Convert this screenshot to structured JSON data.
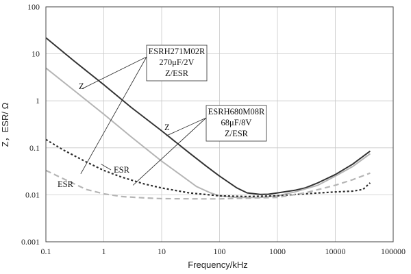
{
  "chart_data": {
    "type": "line",
    "xlabel": "Frequency/kHz",
    "ylabel": "Z，ESR/ Ω",
    "xscale": "log",
    "yscale": "log",
    "xlim": [
      0.1,
      100000
    ],
    "ylim": [
      0.001,
      100
    ],
    "grid": true,
    "x_ticks": [
      "0.1",
      "1",
      "10",
      "100",
      "1000",
      "10000",
      "100000"
    ],
    "y_ticks": [
      "0.001",
      "0.01",
      "0.1",
      "1",
      "10",
      "100"
    ],
    "series": [
      {
        "group": "ESRH271M02R",
        "measure": "Z",
        "color": "#333333",
        "style": "solid",
        "points": [
          [
            0.1,
            22
          ],
          [
            0.3,
            7.2
          ],
          [
            1,
            2.2
          ],
          [
            3,
            0.72
          ],
          [
            10,
            0.23
          ],
          [
            30,
            0.078
          ],
          [
            60,
            0.04
          ],
          [
            100,
            0.025
          ],
          [
            200,
            0.014
          ],
          [
            300,
            0.011
          ],
          [
            500,
            0.0102
          ],
          [
            700,
            0.0103
          ],
          [
            1000,
            0.011
          ],
          [
            2000,
            0.0125
          ],
          [
            3000,
            0.014
          ],
          [
            5000,
            0.018
          ],
          [
            10000,
            0.027
          ],
          [
            20000,
            0.045
          ],
          [
            40000,
            0.085
          ]
        ]
      },
      {
        "group": "ESRH680M08R",
        "measure": "Z",
        "color": "#b5b5b5",
        "style": "solid",
        "points": [
          [
            0.1,
            5
          ],
          [
            0.3,
            1.7
          ],
          [
            1,
            0.52
          ],
          [
            3,
            0.17
          ],
          [
            10,
            0.052
          ],
          [
            20,
            0.028
          ],
          [
            40,
            0.015
          ],
          [
            70,
            0.011
          ],
          [
            100,
            0.0095
          ],
          [
            200,
            0.0088
          ],
          [
            500,
            0.0088
          ],
          [
            1000,
            0.0095
          ],
          [
            2000,
            0.0115
          ],
          [
            5000,
            0.016
          ],
          [
            10000,
            0.025
          ],
          [
            20000,
            0.04
          ],
          [
            40000,
            0.075
          ]
        ]
      },
      {
        "group": "ESRH271M02R",
        "measure": "ESR",
        "color": "#2b2b2b",
        "style": "dotted",
        "points": [
          [
            0.1,
            0.15
          ],
          [
            0.2,
            0.09
          ],
          [
            0.5,
            0.05
          ],
          [
            1,
            0.033
          ],
          [
            2,
            0.024
          ],
          [
            5,
            0.017
          ],
          [
            10,
            0.014
          ],
          [
            30,
            0.011
          ],
          [
            100,
            0.0095
          ],
          [
            300,
            0.0092
          ],
          [
            1000,
            0.0095
          ],
          [
            3000,
            0.0105
          ],
          [
            10000,
            0.0115
          ],
          [
            20000,
            0.012
          ],
          [
            30000,
            0.013
          ],
          [
            40000,
            0.018
          ]
        ]
      },
      {
        "group": "ESRH680M08R",
        "measure": "ESR",
        "color": "#b5b5b5",
        "style": "dashed",
        "points": [
          [
            0.1,
            0.033
          ],
          [
            0.2,
            0.022
          ],
          [
            0.5,
            0.013
          ],
          [
            1,
            0.0105
          ],
          [
            2,
            0.0092
          ],
          [
            5,
            0.0086
          ],
          [
            10,
            0.0083
          ],
          [
            50,
            0.0082
          ],
          [
            100,
            0.0082
          ],
          [
            1000,
            0.0088
          ],
          [
            3000,
            0.011
          ],
          [
            10000,
            0.016
          ],
          [
            20000,
            0.021
          ],
          [
            40000,
            0.029
          ]
        ]
      }
    ],
    "annotations": [
      {
        "lines": [
          "ESRH271M02R",
          "270μF/2V",
          "Z/ESR"
        ]
      },
      {
        "lines": [
          "ESRH680M08R",
          "68μF/8V",
          "Z/ESR"
        ]
      }
    ],
    "curve_labels": [
      "Z",
      "Z",
      "ESR",
      "ESR"
    ]
  }
}
